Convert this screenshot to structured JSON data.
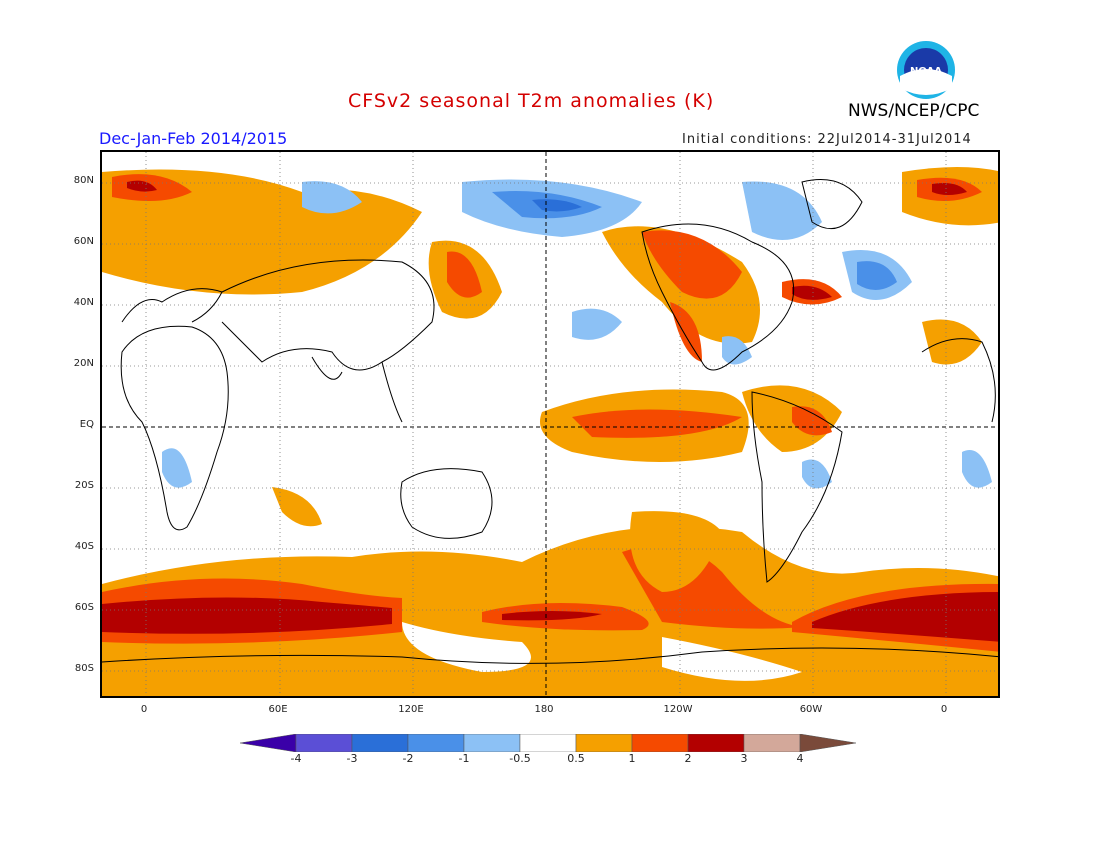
{
  "header": {
    "title": "CFSv2 seasonal T2m anomalies (K)",
    "period": "Dec-Jan-Feb 2014/2015",
    "initial_conditions": "Initial conditions: 22Jul2014-31Jul2014",
    "agency": "NWS/NCEP/CPC",
    "logo_text": "NOAA"
  },
  "map": {
    "lat_labels": [
      "80N",
      "60N",
      "40N",
      "20N",
      "EQ",
      "20S",
      "40S",
      "60S",
      "80S"
    ],
    "lon_labels": [
      "0",
      "60E",
      "120E",
      "180",
      "120W",
      "60W",
      "0"
    ]
  },
  "colorbar": {
    "labels": [
      "-4",
      "-3",
      "-2",
      "-1",
      "-0.5",
      "0.5",
      "1",
      "2",
      "3",
      "4"
    ],
    "colors": [
      "#3a00a8",
      "#5b4fd6",
      "#2a6fd8",
      "#4a90e8",
      "#8cc1f5",
      "#ffffff",
      "#f5a000",
      "#f54a00",
      "#b30000",
      "#d3a89a",
      "#7a4a3a"
    ]
  }
}
